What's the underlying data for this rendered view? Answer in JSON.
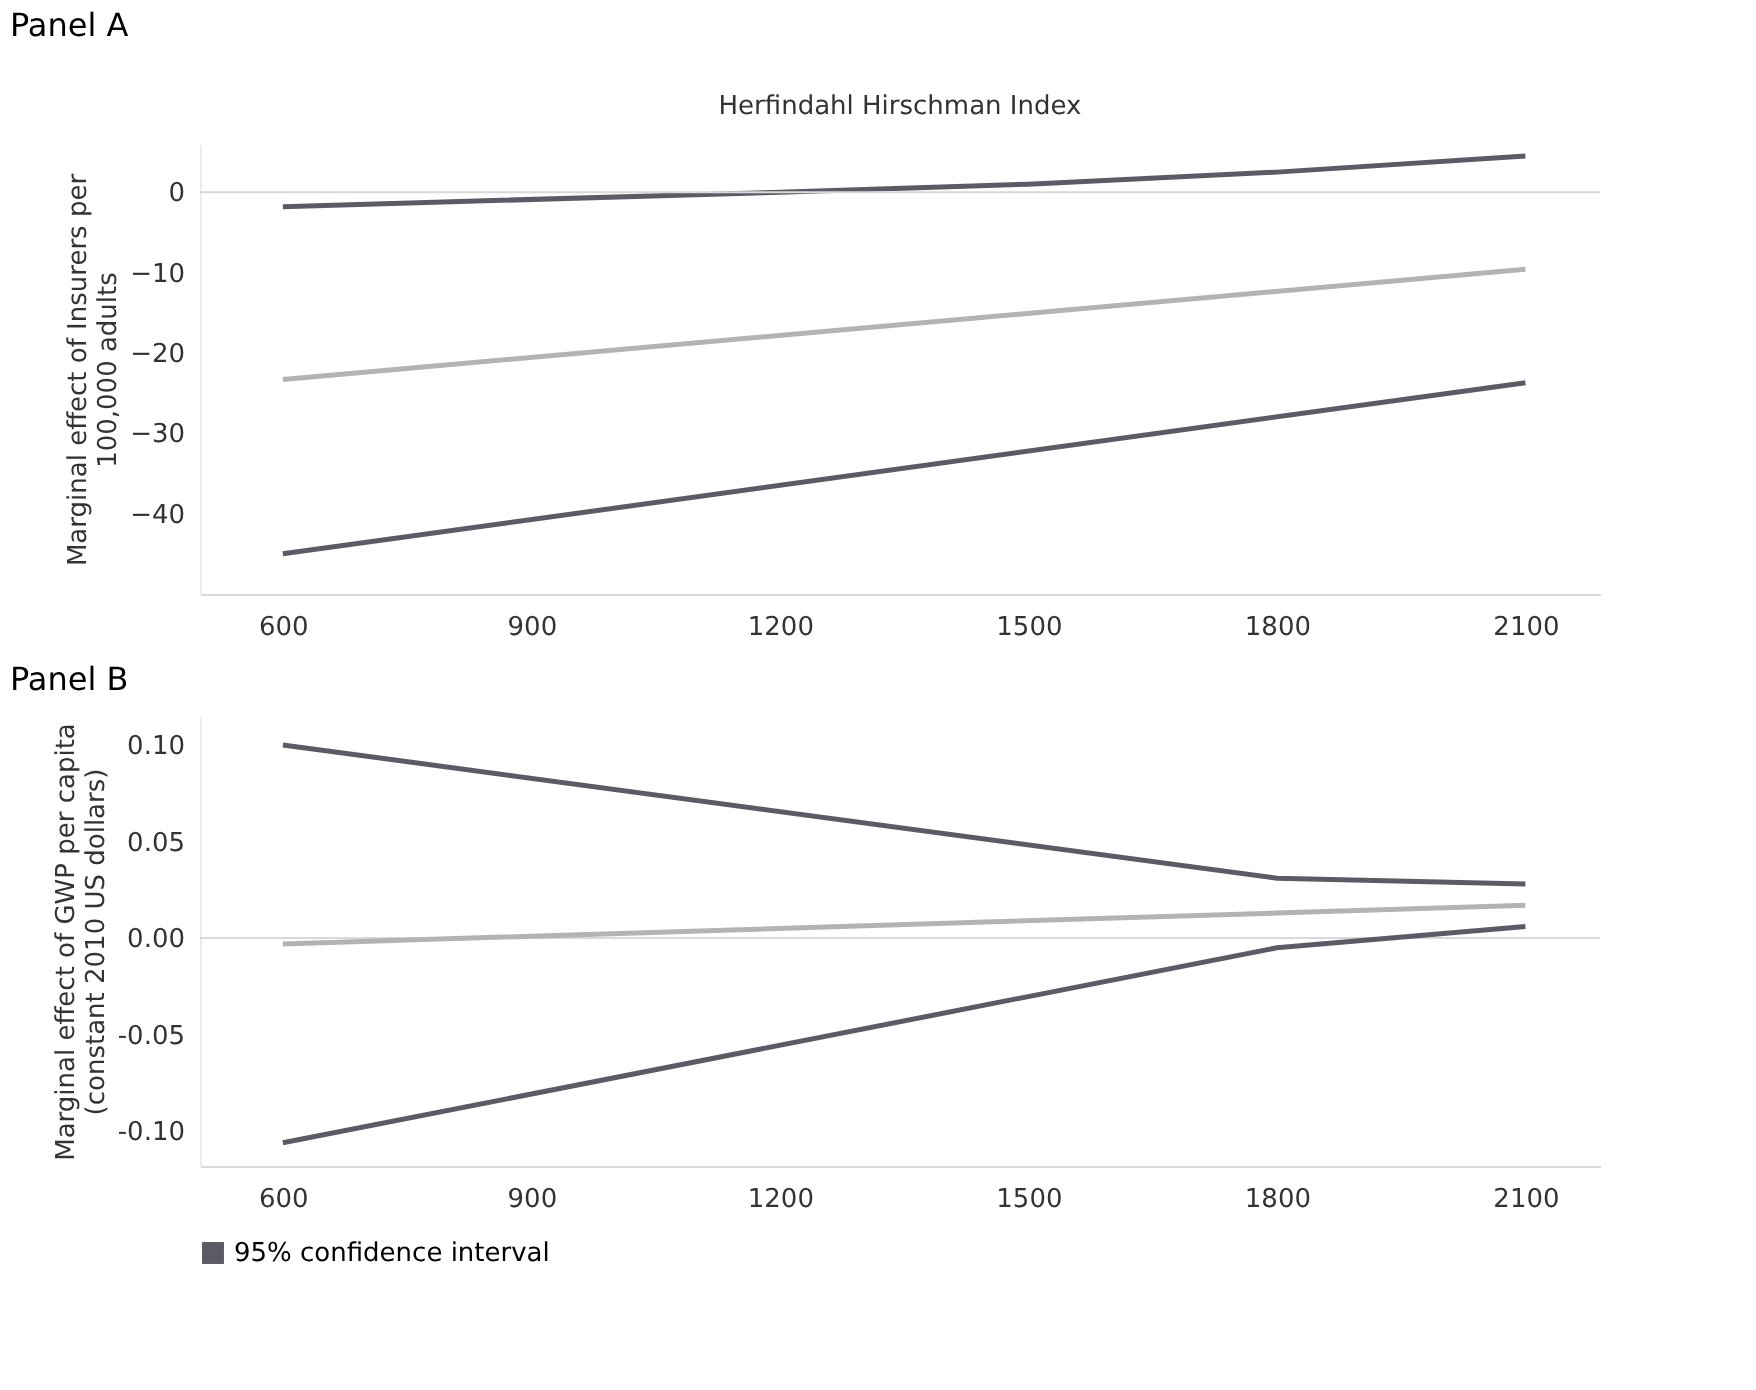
{
  "chart_data": [
    {
      "type": "line",
      "title": "Panel A",
      "subtitle": "Herfindahl Hirschman Index",
      "ylabel": "Marginal effect of Insurers per 100,000 adults",
      "xlim": [
        500,
        2190
      ],
      "xticks": [
        600,
        900,
        1200,
        1500,
        1800,
        2100
      ],
      "ylim": [
        -50,
        6
      ],
      "yticks": [
        0,
        -10,
        -20,
        -30,
        -40
      ],
      "grid": false,
      "legend": false,
      "line_style": "solid",
      "marker": "none",
      "ref_lines": [
        {
          "axis": "y",
          "value": 0,
          "color": "#d9d9d9"
        }
      ],
      "series": [
        {
          "color": "#5b5b66",
          "x": [
            600,
            1200,
            1500,
            1800,
            2100
          ],
          "values": [
            -1.8,
            0,
            1,
            2.5,
            4.5
          ]
        },
        {
          "color": "#b3b3b3",
          "x": [
            600,
            2100
          ],
          "values": [
            -23.3,
            -9.6
          ]
        },
        {
          "color": "#5b5b66",
          "x": [
            600,
            2100
          ],
          "values": [
            -45,
            -23.7
          ]
        }
      ]
    },
    {
      "type": "line",
      "title": "Panel B",
      "ylabel": "Marginal effect of GWP per capita (constant 2010 US dollars)",
      "xlim": [
        500,
        2190
      ],
      "xticks": [
        600,
        900,
        1200,
        1500,
        1800,
        2100
      ],
      "ylim": [
        -0.118,
        0.115
      ],
      "yticks": [
        {
          "value": 0.1,
          "label": "0.10"
        },
        {
          "value": 0.05,
          "label": "0.05"
        },
        {
          "value": 0,
          "label": "0.00"
        },
        {
          "value": -0.05,
          "label": "-0.05"
        },
        {
          "value": -0.1,
          "label": "-0.10"
        }
      ],
      "grid": false,
      "legend": "bottom left",
      "line_style": "solid",
      "marker": "none",
      "ref_lines": [
        {
          "axis": "y",
          "value": 0,
          "color": "#d9d9d9"
        }
      ],
      "series": [
        {
          "name": "95% confidence interval",
          "color": "#5b5b66",
          "x": [
            600,
            1800,
            2100
          ],
          "values": [
            0.1,
            0.031,
            0.028
          ]
        },
        {
          "color": "#b3b3b3",
          "x": [
            600,
            1800,
            2100
          ],
          "values": [
            -0.003,
            0.013,
            0.017
          ]
        },
        {
          "color": "#5b5b66",
          "x": [
            600,
            1800,
            2100
          ],
          "values": [
            -0.106,
            -0.005,
            0.006
          ]
        }
      ]
    }
  ]
}
